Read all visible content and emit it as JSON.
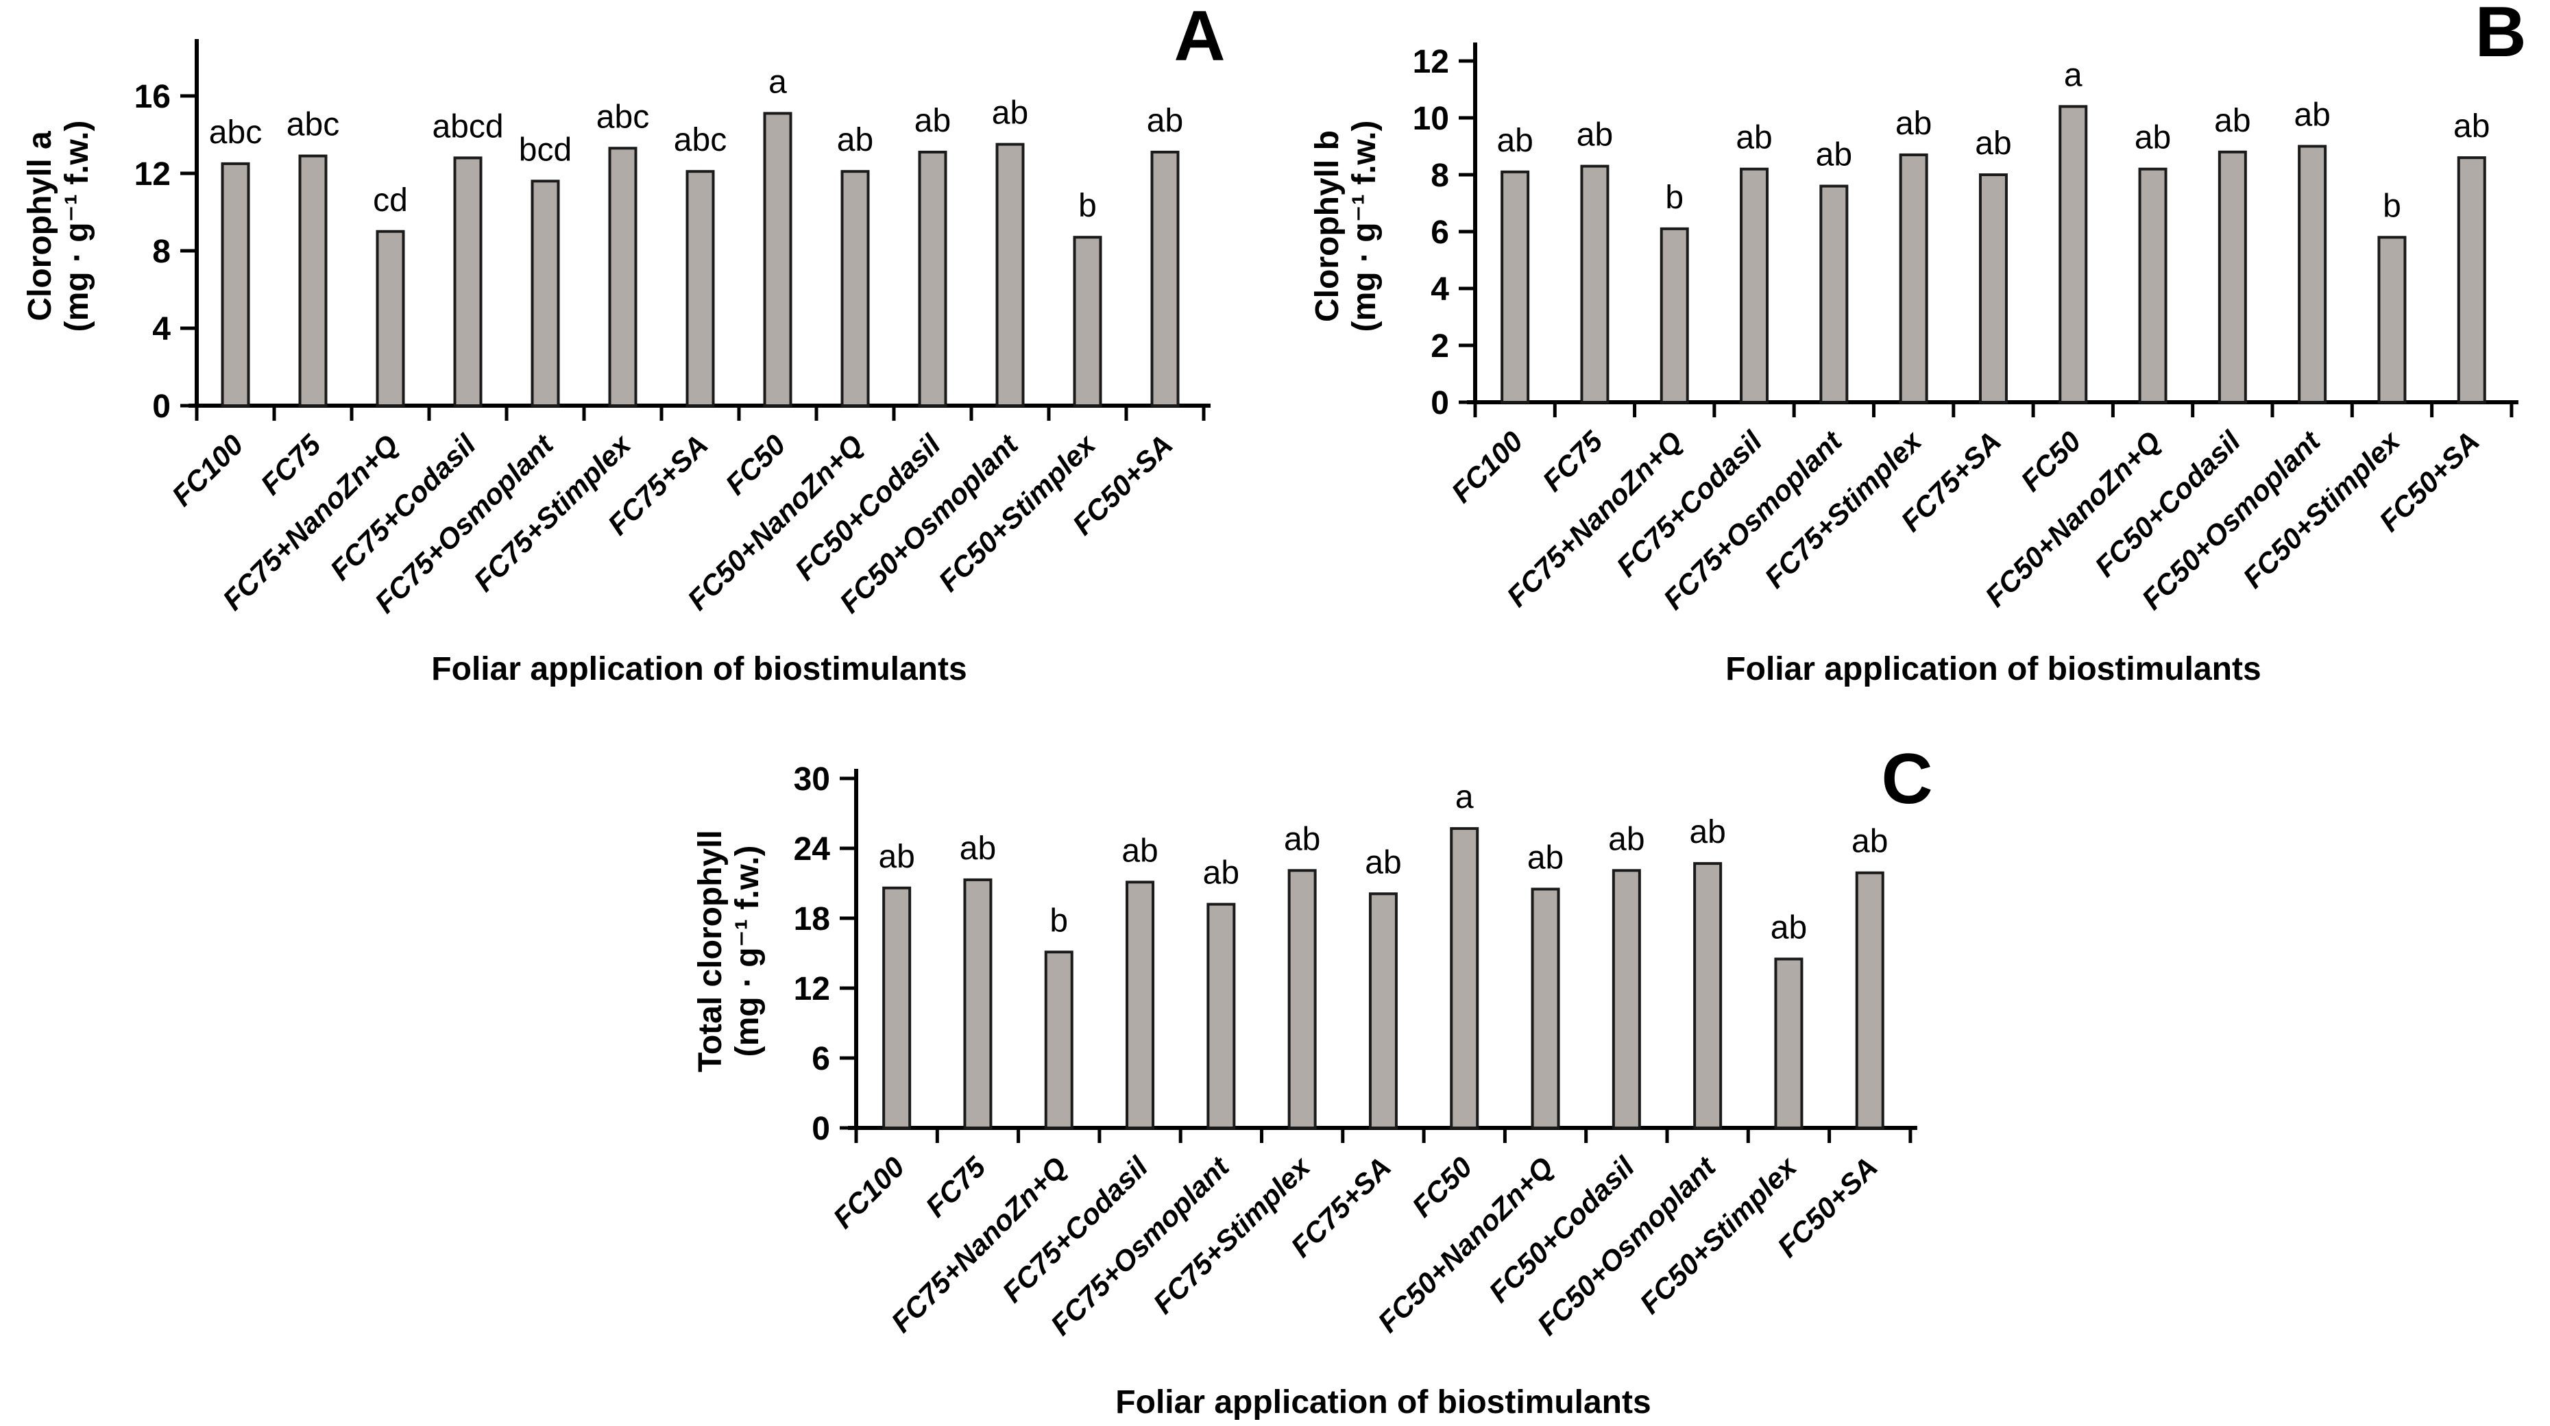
{
  "figure": {
    "background": "#ffffff",
    "bar_fill": "#b0aba6",
    "bar_stroke": "#1a1a1a",
    "axis_color": "#000000",
    "text_color": "#000000"
  },
  "chart_data": [
    {
      "type": "bar",
      "panel": "A",
      "ylabel_line1": "Clorophyll a",
      "ylabel_line2": "(mg · g⁻¹ f.w.)",
      "xlabel": "Foliar application of biostimulants",
      "ylim": [
        0,
        16
      ],
      "yticks": [
        0,
        4,
        8,
        12,
        16
      ],
      "grid": false,
      "categories": [
        "FC100",
        "FC75",
        "FC75+NanoZn+Q",
        "FC75+Codasil",
        "FC75+Osmoplant",
        "FC75+Stimplex",
        "FC75+SA",
        "FC50",
        "FC50+NanoZn+Q",
        "FC50+Codasil",
        "FC50+Osmoplant",
        "FC50+Stimplex",
        "FC50+SA"
      ],
      "values": [
        12.5,
        12.9,
        9.0,
        12.8,
        11.6,
        13.3,
        12.1,
        15.1,
        12.1,
        13.1,
        13.5,
        8.7,
        13.1
      ],
      "sig_letters": [
        "abc",
        "abc",
        "cd",
        "abcd",
        "bcd",
        "abc",
        "abc",
        "a",
        "ab",
        "ab",
        "ab",
        "b",
        "ab"
      ]
    },
    {
      "type": "bar",
      "panel": "B",
      "ylabel_line1": "Clorophyll b",
      "ylabel_line2": "(mg · g⁻¹ f.w.)",
      "xlabel": "Foliar application of biostimulants",
      "ylim": [
        0,
        12
      ],
      "yticks": [
        0,
        2,
        4,
        6,
        8,
        10,
        12
      ],
      "grid": false,
      "categories": [
        "FC100",
        "FC75",
        "FC75+NanoZn+Q",
        "FC75+Codasil",
        "FC75+Osmoplant",
        "FC75+Stimplex",
        "FC75+SA",
        "FC50",
        "FC50+NanoZn+Q",
        "FC50+Codasil",
        "FC50+Osmoplant",
        "FC50+Stimplex",
        "FC50+SA"
      ],
      "values": [
        8.1,
        8.3,
        6.1,
        8.2,
        7.6,
        8.7,
        8.0,
        10.4,
        8.2,
        8.8,
        9.0,
        5.8,
        8.6
      ],
      "sig_letters": [
        "ab",
        "ab",
        "b",
        "ab",
        "ab",
        "ab",
        "ab",
        "a",
        "ab",
        "ab",
        "ab",
        "b",
        "ab"
      ]
    },
    {
      "type": "bar",
      "panel": "C",
      "ylabel_line1": "Total clorophyll",
      "ylabel_line2": "(mg · g⁻¹ f.w.)",
      "xlabel": "Foliar application of biostimulants",
      "ylim": [
        0,
        30
      ],
      "yticks": [
        0,
        6,
        12,
        18,
        24,
        30
      ],
      "grid": false,
      "categories": [
        "FC100",
        "FC75",
        "FC75+NanoZn+Q",
        "FC75+Codasil",
        "FC75+Osmoplant",
        "FC75+Stimplex",
        "FC75+SA",
        "FC50",
        "FC50+NanoZn+Q",
        "FC50+Codasil",
        "FC50+Osmoplant",
        "FC50+Stimplex",
        "FC50+SA"
      ],
      "values": [
        20.6,
        21.3,
        15.1,
        21.1,
        19.2,
        22.1,
        20.1,
        25.7,
        20.5,
        22.1,
        22.7,
        14.5,
        21.9
      ],
      "sig_letters": [
        "ab",
        "ab",
        "b",
        "ab",
        "ab",
        "ab",
        "ab",
        "a",
        "ab",
        "ab",
        "ab",
        "ab",
        "ab"
      ]
    }
  ]
}
